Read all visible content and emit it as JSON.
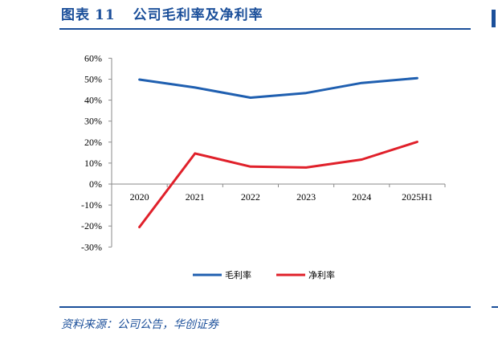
{
  "header": {
    "figure_label": "图表",
    "figure_number": "11",
    "title": "公司毛利率及净利率"
  },
  "source": "资料来源：公司公告，华创证券",
  "colors": {
    "gross": "#1f5fb0",
    "net": "#e0202a",
    "accent": "#1b4f9a"
  },
  "chart_data": {
    "type": "line",
    "categories": [
      "2020",
      "2021",
      "2022",
      "2023",
      "2024",
      "2025H1"
    ],
    "y_ticks": [
      "60%",
      "50%",
      "40%",
      "30%",
      "20%",
      "10%",
      "0%",
      "-10%",
      "-20%",
      "-30%"
    ],
    "ylim": [
      -30,
      60
    ],
    "y_unit": "%",
    "grid": false,
    "legend_position": "bottom-center",
    "series": [
      {
        "name": "毛利率",
        "values": [
          49.8,
          46.0,
          41.2,
          43.4,
          48.2,
          50.5
        ]
      },
      {
        "name": "净利率",
        "values": [
          -20.5,
          14.6,
          8.3,
          7.9,
          11.7,
          20.1
        ]
      }
    ]
  }
}
